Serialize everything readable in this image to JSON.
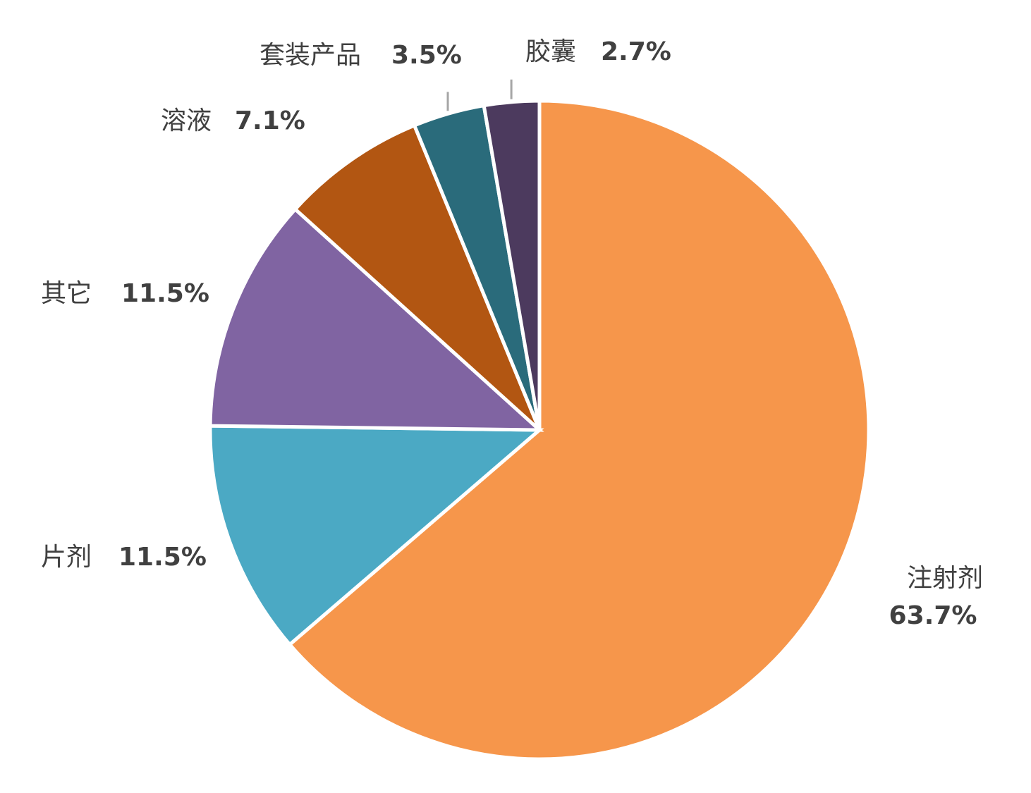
{
  "chart_data": {
    "type": "pie",
    "categories": [
      "注射剂",
      "片剂",
      "其它",
      "溶液",
      "套装产品",
      "胶囊"
    ],
    "values": [
      63.7,
      11.5,
      11.5,
      7.1,
      3.5,
      2.7
    ],
    "value_labels": [
      "63.7%",
      "11.5%",
      "11.5%",
      "7.1%",
      "3.5%",
      "2.7%"
    ],
    "colors": [
      "#f6964b",
      "#4ba9c4",
      "#8064a2",
      "#b25612",
      "#2a6b7b",
      "#4c3a5e"
    ]
  }
}
